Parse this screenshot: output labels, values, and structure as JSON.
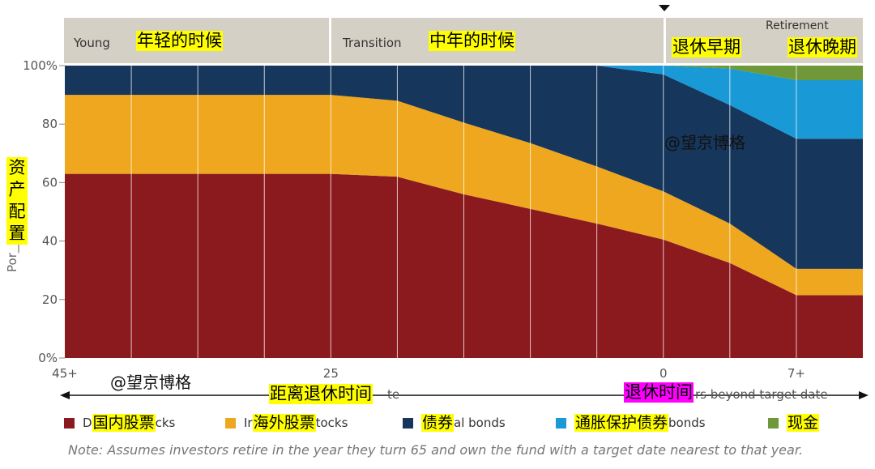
{
  "chart_data": {
    "type": "area",
    "stacked": true,
    "y_axis": {
      "ticks": [
        0,
        20,
        40,
        60,
        80,
        100
      ],
      "tick_labels": [
        "0%",
        "20",
        "40",
        "60",
        "80",
        "100%"
      ],
      "ylim": [
        0,
        100
      ],
      "label_visible": "Por___on",
      "label_overlay": "资产配置"
    },
    "x_axis": {
      "label_visible_end": "te",
      "label_overlay": "距离退休时间",
      "label_right": "rs beyond target date",
      "label_right_overlay": "退休时间",
      "tick_labels": [
        {
          "pos": 0,
          "text": "45+"
        },
        {
          "pos": 4,
          "text": "25"
        },
        {
          "pos": 9,
          "text": "0"
        },
        {
          "pos": 11,
          "text": "7+"
        }
      ]
    },
    "x": [
      0,
      1,
      2,
      3,
      4,
      5,
      6,
      7,
      8,
      9,
      10,
      11,
      12
    ],
    "series": [
      {
        "name": "国内股票",
        "color": "#8b1a1e",
        "values": [
          63,
          63,
          63,
          63,
          63,
          62,
          56,
          51,
          46,
          40.5,
          32.5,
          21.5,
          21.5
        ]
      },
      {
        "name": "海外股票",
        "color": "#eea71e",
        "values": [
          27,
          27,
          27,
          27,
          27,
          26,
          24.5,
          22.5,
          19.5,
          16.5,
          13.5,
          9,
          9
        ]
      },
      {
        "name": "债券",
        "color": "#16365c",
        "values": [
          10,
          10,
          10,
          10,
          10,
          12,
          19.5,
          26.5,
          34.5,
          40,
          40.5,
          44.5,
          44.5
        ]
      },
      {
        "name": "通胀保护债券",
        "color": "#1999d6",
        "values": [
          0,
          0,
          0,
          0,
          0,
          0,
          0,
          0,
          0,
          3,
          12.5,
          20,
          20
        ]
      },
      {
        "name": "现金",
        "color": "#6f9838",
        "values": [
          0,
          0,
          0,
          0,
          0,
          0,
          0,
          0,
          0,
          0,
          1,
          5,
          5
        ]
      }
    ],
    "phases": [
      {
        "label": "Young",
        "overlay": "年轻的时候"
      },
      {
        "label": "Transition",
        "overlay": "中年的时候"
      },
      {
        "label": "Retirement",
        "early_overlay": "退休早期",
        "late_overlay": "退休晚期"
      }
    ],
    "watermarks": [
      "@望京博格",
      "@望京博格"
    ]
  },
  "legend": [
    {
      "prefix": "D",
      "overlay": "国内股票",
      "suffix": "cks",
      "color": "#8b1a1e"
    },
    {
      "prefix": "Ir",
      "overlay": "海外股票",
      "suffix": "tocks",
      "color": "#eea71e"
    },
    {
      "prefix": "",
      "overlay": "债券",
      "suffix": "al bonds",
      "color": "#16365c"
    },
    {
      "prefix": "",
      "overlay": "通胀保护债券",
      "suffix": "bonds",
      "color": "#1999d6"
    },
    {
      "prefix": "",
      "overlay": "现金",
      "suffix": "",
      "color": "#6f9838"
    }
  ],
  "note": "Note: Assumes investors retire in the year they turn 65 and own the fund with a target date nearest to that year."
}
